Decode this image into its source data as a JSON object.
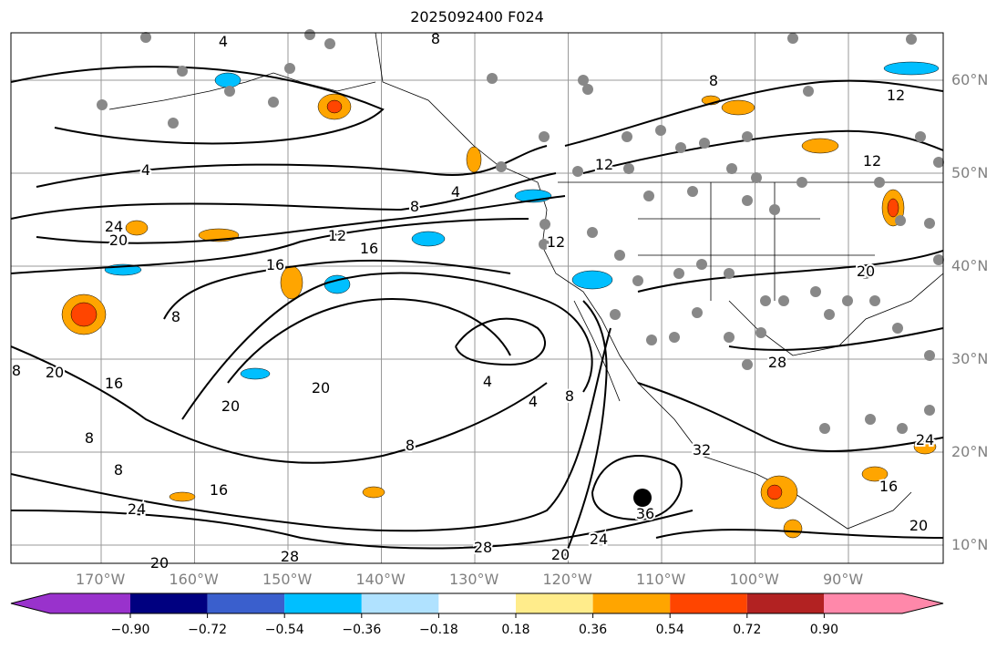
{
  "title": "2025092400 F024",
  "lon_ticks": [
    "170°W",
    "160°W",
    "150°W",
    "140°W",
    "130°W",
    "120°W",
    "110°W",
    "100°W",
    "90°W"
  ],
  "lat_ticks": [
    "60°N",
    "50°N",
    "40°N",
    "30°N",
    "20°N",
    "10°N"
  ],
  "colorbar": {
    "colors": [
      "#9932CC",
      "#000080",
      "#3A5FCD",
      "#00BFFF",
      "#B0E2FF",
      "#FFFFFF",
      "#FFEC8B",
      "#FFA500",
      "#FF4500",
      "#B22222",
      "#FF88AA"
    ],
    "ticks": [
      "−0.90",
      "−0.72",
      "−0.54",
      "−0.36",
      "−0.18",
      "0.18",
      "0.36",
      "0.54",
      "0.72",
      "0.90"
    ]
  },
  "contour_labels": [
    "4",
    "8",
    "8",
    "12",
    "4",
    "12",
    "12",
    "8",
    "4",
    "24",
    "20",
    "16",
    "12",
    "16",
    "12",
    "8",
    "20",
    "8",
    "20",
    "16",
    "20",
    "20",
    "4",
    "4",
    "8",
    "8",
    "8",
    "8",
    "16",
    "24",
    "32",
    "36",
    "24",
    "20",
    "28",
    "28",
    "20",
    "16",
    "20",
    "24",
    "28"
  ]
}
